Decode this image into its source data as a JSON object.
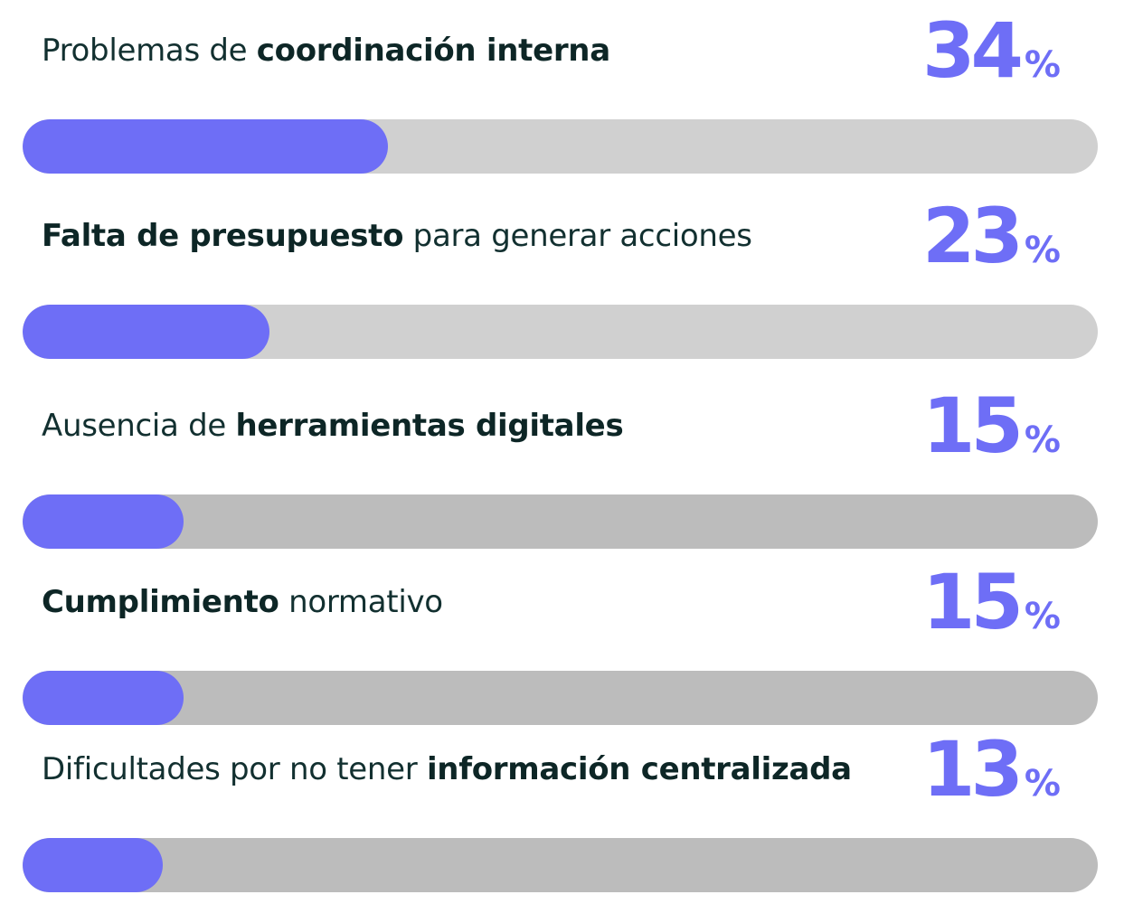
{
  "chart_data": {
    "type": "bar",
    "orientation": "horizontal",
    "title": "",
    "xlim": [
      0,
      100
    ],
    "colors": {
      "fill": "#6e6ef6",
      "track_light": "#d0d0d0",
      "track_dark": "#bcbcbc"
    },
    "items": [
      {
        "label_parts": [
          {
            "text": "Problemas de ",
            "bold": false
          },
          {
            "text": "coordinación interna",
            "bold": true
          }
        ],
        "value": 34,
        "value_label": "34",
        "unit": "%",
        "track": "light"
      },
      {
        "label_parts": [
          {
            "text": "Falta de presupuesto",
            "bold": true
          },
          {
            "text": " para generar acciones",
            "bold": false
          }
        ],
        "value": 23,
        "value_label": "23",
        "unit": "%",
        "track": "light"
      },
      {
        "label_parts": [
          {
            "text": "Ausencia de ",
            "bold": false
          },
          {
            "text": "herramientas digitales",
            "bold": true
          }
        ],
        "value": 15,
        "value_label": "15",
        "unit": "%",
        "track": "dark"
      },
      {
        "label_parts": [
          {
            "text": "Cumplimiento",
            "bold": true
          },
          {
            "text": " normativo",
            "bold": false
          }
        ],
        "value": 15,
        "value_label": "15",
        "unit": "%",
        "track": "dark"
      },
      {
        "label_parts": [
          {
            "text": "Dificultades por no tener ",
            "bold": false
          },
          {
            "text": "información centralizada",
            "bold": true
          }
        ],
        "value": 13,
        "value_label": "13",
        "unit": "%",
        "track": "dark"
      }
    ]
  }
}
